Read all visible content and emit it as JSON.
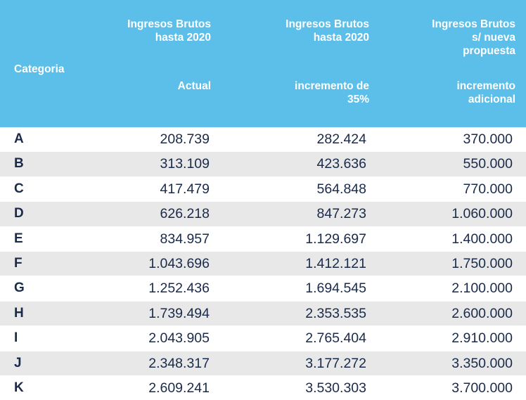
{
  "colors": {
    "header_bg": "#5bbfe9",
    "header_text": "#ffffff",
    "row_alt_bg": "#e8e8e8",
    "body_text": "#1a2a4a"
  },
  "header": {
    "category": "Categoria",
    "col1": {
      "line1": "Ingresos Brutos",
      "line2": "hasta 2020",
      "sub1": "Actual"
    },
    "col2": {
      "line1": "Ingresos Brutos",
      "line2": "hasta 2020",
      "sub1": "incremento de",
      "sub2": "35%"
    },
    "col3": {
      "line1": "Ingresos Brutos",
      "line2": "s/ nueva",
      "line3": "propuesta",
      "sub1": "incremento",
      "sub2": "adicional"
    }
  },
  "rows": [
    {
      "category": "A",
      "actual": "208.739",
      "incremento35": "282.424",
      "propuesta": "370.000"
    },
    {
      "category": "B",
      "actual": "313.109",
      "incremento35": "423.636",
      "propuesta": "550.000"
    },
    {
      "category": "C",
      "actual": "417.479",
      "incremento35": "564.848",
      "propuesta": "770.000"
    },
    {
      "category": "D",
      "actual": "626.218",
      "incremento35": "847.273",
      "propuesta": "1.060.000"
    },
    {
      "category": "E",
      "actual": "834.957",
      "incremento35": "1.129.697",
      "propuesta": "1.400.000"
    },
    {
      "category": "F",
      "actual": "1.043.696",
      "incremento35": "1.412.121",
      "propuesta": "1.750.000"
    },
    {
      "category": "G",
      "actual": "1.252.436",
      "incremento35": "1.694.545",
      "propuesta": "2.100.000"
    },
    {
      "category": "H",
      "actual": "1.739.494",
      "incremento35": "2.353.535",
      "propuesta": "2.600.000"
    },
    {
      "category": "I",
      "actual": "2.043.905",
      "incremento35": "2.765.404",
      "propuesta": "2.910.000"
    },
    {
      "category": "J",
      "actual": "2.348.317",
      "incremento35": "3.177.272",
      "propuesta": "3.350.000"
    },
    {
      "category": "K",
      "actual": "2.609.241",
      "incremento35": "3.530.303",
      "propuesta": "3.700.000"
    }
  ]
}
